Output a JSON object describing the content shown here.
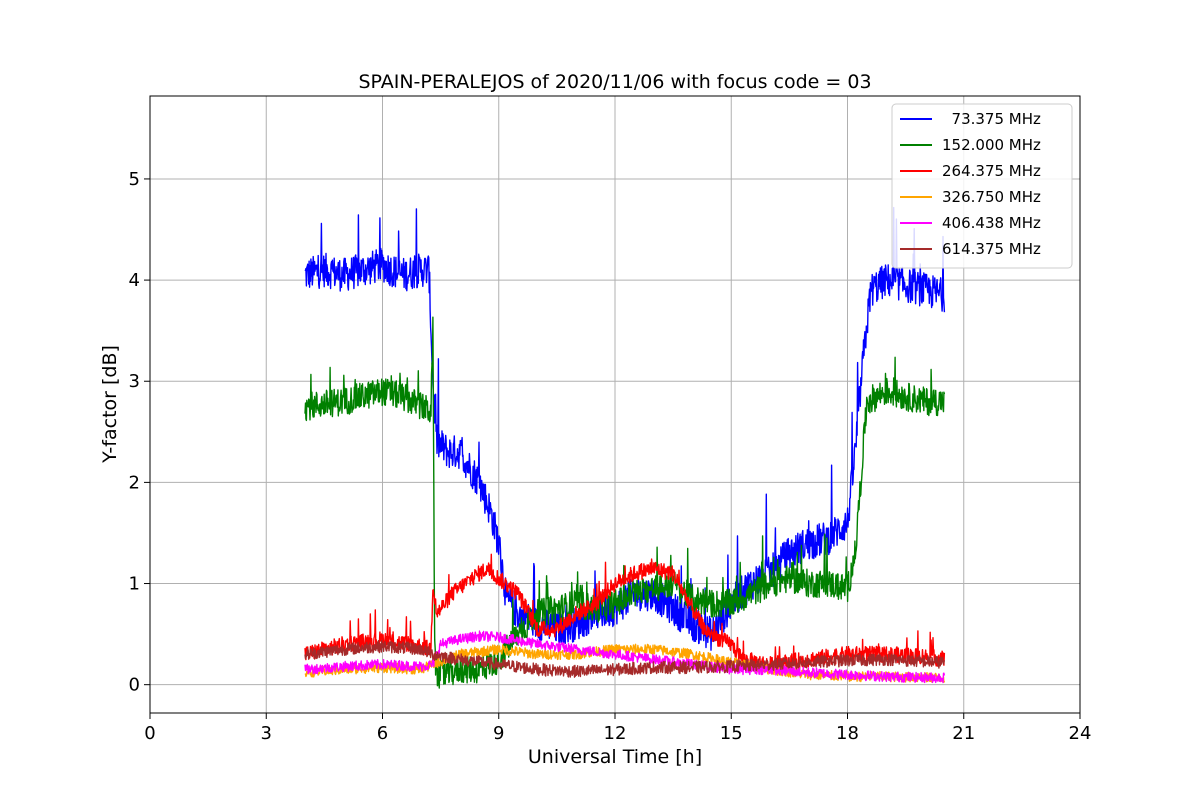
{
  "chart_data": {
    "type": "line",
    "title": "SPAIN-PERALEJOS of 2020/11/06 with focus code = 03",
    "xlabel": "Universal Time [h]",
    "ylabel": "Y-factor [dB]",
    "xlim": [
      0,
      24
    ],
    "ylim": [
      -0.28,
      5.82
    ],
    "xticks": [
      0,
      3,
      6,
      9,
      12,
      15,
      18,
      21,
      24
    ],
    "yticks": [
      0,
      1,
      2,
      3,
      4,
      5
    ],
    "grid": true,
    "legend_position": "top-right",
    "series": [
      {
        "name": "  73.375 MHz",
        "color": "#0000ff",
        "noise": 0.17,
        "spike": 0.45,
        "x": [
          4.0,
          4.5,
          5.0,
          5.5,
          6.0,
          6.5,
          7.0,
          7.2,
          7.3,
          7.4,
          7.7,
          8.0,
          8.5,
          8.8,
          9.0,
          9.2,
          9.5,
          10.0,
          10.5,
          11.0,
          11.5,
          12.0,
          12.5,
          13.0,
          13.5,
          14.0,
          14.5,
          15.0,
          15.5,
          16.0,
          16.5,
          17.0,
          17.5,
          18.0,
          18.2,
          18.4,
          18.6,
          19.0,
          19.5,
          20.0,
          20.5
        ],
        "y": [
          4.05,
          4.1,
          4.05,
          4.1,
          4.15,
          4.05,
          4.1,
          4.1,
          3.0,
          2.4,
          2.3,
          2.3,
          2.0,
          1.7,
          1.4,
          0.85,
          0.7,
          0.6,
          0.55,
          0.6,
          0.7,
          0.75,
          0.9,
          0.9,
          0.75,
          0.6,
          0.5,
          0.8,
          1.0,
          1.1,
          1.3,
          1.4,
          1.45,
          1.6,
          2.3,
          3.2,
          3.9,
          4.0,
          3.95,
          3.9,
          3.85
        ]
      },
      {
        "name": "152.000 MHz",
        "color": "#008000",
        "noise": 0.14,
        "spike": 0.25,
        "x": [
          4.0,
          5.0,
          6.0,
          6.5,
          7.0,
          7.25,
          7.3,
          7.35,
          7.4,
          7.6,
          8.0,
          8.5,
          9.0,
          9.5,
          10.0,
          10.5,
          11.0,
          11.5,
          12.0,
          12.5,
          13.0,
          13.5,
          14.0,
          14.5,
          15.0,
          15.5,
          16.0,
          16.5,
          17.0,
          17.5,
          18.0,
          18.2,
          18.5,
          19.0,
          20.0,
          20.5
        ],
        "y": [
          2.75,
          2.8,
          2.9,
          2.85,
          2.75,
          2.7,
          3.5,
          0.3,
          0.1,
          0.1,
          0.15,
          0.15,
          0.25,
          0.5,
          0.7,
          0.75,
          0.8,
          0.75,
          0.8,
          0.9,
          0.95,
          1.0,
          0.85,
          0.8,
          0.8,
          0.9,
          1.0,
          1.05,
          1.0,
          1.0,
          0.95,
          1.3,
          2.8,
          2.9,
          2.8,
          2.8
        ]
      },
      {
        "name": "264.375 MHz",
        "color": "#ff0000",
        "noise": 0.08,
        "spike": 0.15,
        "x": [
          4.0,
          5.0,
          6.0,
          7.0,
          7.25,
          7.3,
          7.4,
          7.8,
          8.3,
          8.7,
          9.0,
          9.5,
          10.0,
          10.5,
          11.0,
          11.5,
          12.0,
          12.5,
          13.0,
          13.5,
          14.0,
          14.3,
          14.7,
          15.0,
          15.3,
          16.0,
          17.0,
          18.0,
          19.0,
          20.0,
          20.5
        ],
        "y": [
          0.3,
          0.4,
          0.45,
          0.38,
          0.35,
          1.0,
          0.7,
          0.9,
          1.05,
          1.15,
          1.05,
          0.9,
          0.55,
          0.55,
          0.7,
          0.8,
          1.0,
          1.1,
          1.15,
          1.1,
          0.75,
          0.55,
          0.45,
          0.4,
          0.25,
          0.2,
          0.25,
          0.3,
          0.3,
          0.28,
          0.25
        ]
      },
      {
        "name": "326.750 MHz",
        "color": "#ffa500",
        "noise": 0.05,
        "spike": 0.0,
        "x": [
          4.0,
          5.0,
          6.0,
          7.0,
          7.3,
          8.0,
          9.0,
          10.0,
          11.0,
          12.0,
          13.0,
          14.0,
          15.0,
          16.0,
          17.0,
          18.0,
          19.0,
          20.0,
          20.5
        ],
        "y": [
          0.12,
          0.15,
          0.17,
          0.15,
          0.2,
          0.3,
          0.35,
          0.3,
          0.3,
          0.35,
          0.35,
          0.3,
          0.22,
          0.15,
          0.1,
          0.08,
          0.08,
          0.07,
          0.07
        ]
      },
      {
        "name": "406.438 MHz",
        "color": "#ff00ff",
        "noise": 0.05,
        "spike": 0.0,
        "x": [
          4.0,
          5.0,
          6.0,
          7.0,
          7.3,
          7.5,
          8.0,
          8.5,
          9.0,
          10.0,
          11.0,
          12.0,
          13.0,
          14.0,
          15.0,
          16.0,
          17.0,
          18.0,
          19.0,
          20.0,
          20.5
        ],
        "y": [
          0.15,
          0.18,
          0.2,
          0.18,
          0.2,
          0.4,
          0.45,
          0.48,
          0.47,
          0.4,
          0.35,
          0.3,
          0.25,
          0.2,
          0.15,
          0.15,
          0.12,
          0.1,
          0.08,
          0.07,
          0.07
        ]
      },
      {
        "name": "614.375 MHz",
        "color": "#a52a2a",
        "noise": 0.06,
        "spike": 0.0,
        "x": [
          4.0,
          5.0,
          6.0,
          7.0,
          7.3,
          8.0,
          9.0,
          10.0,
          11.0,
          12.0,
          13.0,
          14.0,
          15.0,
          16.0,
          17.0,
          18.0,
          19.0,
          20.0,
          20.5
        ],
        "y": [
          0.3,
          0.35,
          0.38,
          0.35,
          0.3,
          0.25,
          0.2,
          0.15,
          0.13,
          0.15,
          0.17,
          0.17,
          0.18,
          0.2,
          0.22,
          0.24,
          0.25,
          0.23,
          0.22
        ]
      }
    ]
  }
}
